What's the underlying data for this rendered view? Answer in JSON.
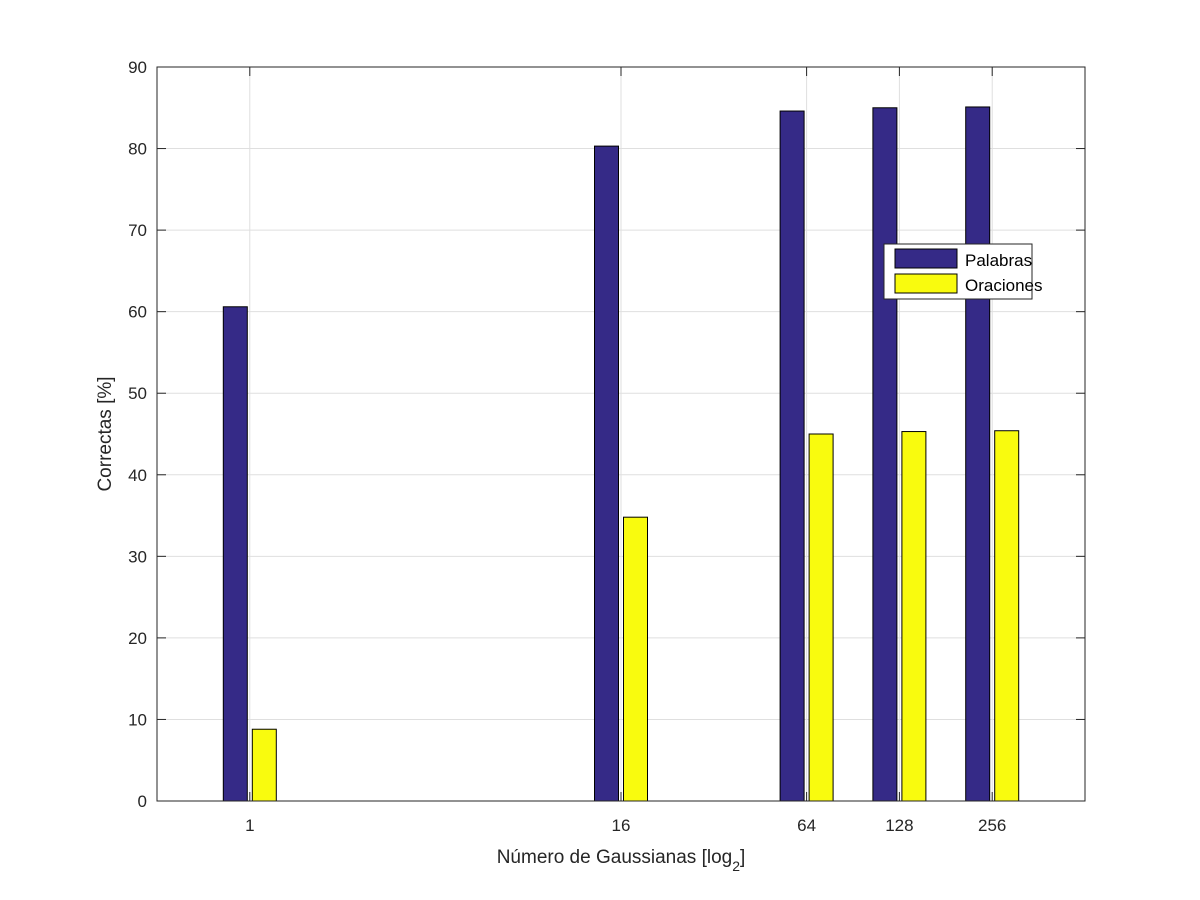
{
  "chart_data": {
    "type": "bar",
    "title": "",
    "xlabel": {
      "main": "Número de Gaussianas [log",
      "subscript": "2",
      "close": "]"
    },
    "ylabel": "Correctas [%]",
    "x_scale": "log2",
    "x": [
      1,
      16,
      64,
      128,
      256
    ],
    "categories": [
      "1",
      "16",
      "64",
      "128",
      "256"
    ],
    "ylim": [
      0,
      90
    ],
    "yticks": [
      0,
      10,
      20,
      30,
      40,
      50,
      60,
      70,
      80,
      90
    ],
    "grid": true,
    "legend_position": "right",
    "series": [
      {
        "name": "Palabras",
        "color": "#352a87",
        "values": [
          60.6,
          80.3,
          84.6,
          85.0,
          85.1
        ]
      },
      {
        "name": "Oraciones",
        "color": "#f9fb0e",
        "values": [
          8.8,
          34.8,
          45.0,
          45.3,
          45.4
        ]
      }
    ]
  }
}
